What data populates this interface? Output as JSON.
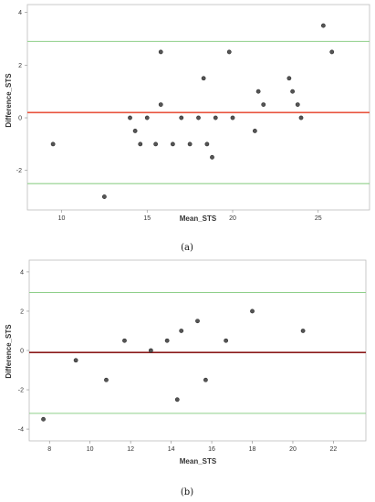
{
  "chart_data": [
    {
      "type": "scatter",
      "panel_label": "(a)",
      "xlabel": "Mean_STS",
      "ylabel": "Difference_STS",
      "xlim": [
        8,
        28
      ],
      "ylim": [
        -3.5,
        4.3
      ],
      "xticks": [
        10,
        15,
        20,
        25
      ],
      "yticks": [
        4,
        2,
        0,
        -2
      ],
      "reference_lines": {
        "mean": 0.2,
        "upper_loa": 2.9,
        "lower_loa": -2.5
      },
      "colors": {
        "mean": "#e8553f",
        "loa": "#8fcf8a",
        "points": "#555555"
      },
      "points": [
        {
          "x": 9.5,
          "y": -1.0
        },
        {
          "x": 12.5,
          "y": -3.0
        },
        {
          "x": 14.0,
          "y": 0.0
        },
        {
          "x": 14.3,
          "y": -0.5
        },
        {
          "x": 14.6,
          "y": -1.0
        },
        {
          "x": 15.0,
          "y": 0.0
        },
        {
          "x": 15.5,
          "y": -1.0
        },
        {
          "x": 15.8,
          "y": 0.5
        },
        {
          "x": 15.8,
          "y": 2.5
        },
        {
          "x": 16.5,
          "y": -1.0
        },
        {
          "x": 17.0,
          "y": 0.0
        },
        {
          "x": 17.5,
          "y": -1.0
        },
        {
          "x": 18.0,
          "y": 0.0
        },
        {
          "x": 18.3,
          "y": 1.5
        },
        {
          "x": 18.5,
          "y": -1.0
        },
        {
          "x": 18.8,
          "y": -1.5
        },
        {
          "x": 19.0,
          "y": 0.0
        },
        {
          "x": 19.8,
          "y": 2.5
        },
        {
          "x": 20.0,
          "y": 0.0
        },
        {
          "x": 21.3,
          "y": -0.5
        },
        {
          "x": 21.5,
          "y": 1.0
        },
        {
          "x": 21.8,
          "y": 0.5
        },
        {
          "x": 23.3,
          "y": 1.5
        },
        {
          "x": 23.5,
          "y": 1.0
        },
        {
          "x": 23.8,
          "y": 0.5
        },
        {
          "x": 24.0,
          "y": 0.0
        },
        {
          "x": 25.3,
          "y": 3.5
        },
        {
          "x": 25.8,
          "y": 2.5
        }
      ]
    },
    {
      "type": "scatter",
      "panel_label": "(b)",
      "xlabel": "Mean_STS",
      "ylabel": "Difference_STS",
      "xlim": [
        7,
        23.6
      ],
      "ylim": [
        -4.6,
        4.6
      ],
      "xticks": [
        8,
        10,
        12,
        14,
        16,
        18,
        20,
        22
      ],
      "yticks": [
        4,
        2,
        0,
        -2,
        -4
      ],
      "reference_lines": {
        "mean": -0.1,
        "upper_loa": 2.95,
        "lower_loa": -3.2
      },
      "colors": {
        "mean": "#8b1a1a",
        "loa": "#8fcf8a",
        "points": "#555555"
      },
      "points": [
        {
          "x": 7.7,
          "y": -3.5
        },
        {
          "x": 9.3,
          "y": -0.5
        },
        {
          "x": 10.8,
          "y": -1.5
        },
        {
          "x": 11.7,
          "y": 0.5
        },
        {
          "x": 13.0,
          "y": 0.0
        },
        {
          "x": 13.8,
          "y": 0.5
        },
        {
          "x": 14.3,
          "y": -2.5
        },
        {
          "x": 14.5,
          "y": 1.0
        },
        {
          "x": 15.3,
          "y": 1.5
        },
        {
          "x": 15.7,
          "y": -1.5
        },
        {
          "x": 16.7,
          "y": 0.5
        },
        {
          "x": 18.0,
          "y": 2.0
        },
        {
          "x": 20.5,
          "y": 1.0
        }
      ]
    }
  ]
}
